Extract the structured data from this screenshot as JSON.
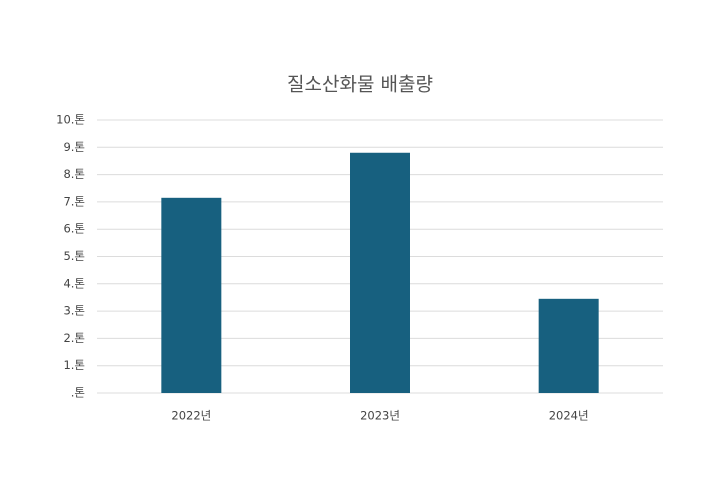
{
  "chart_data": {
    "type": "bar",
    "title": "질소산화물 배출량",
    "categories": [
      "2022년",
      "2023년",
      "2024년"
    ],
    "values": [
      7.15,
      8.8,
      3.45
    ],
    "color": "#17607f",
    "ylim": [
      0,
      10
    ],
    "yticks": [
      {
        "value": 0,
        "label": ".톤"
      },
      {
        "value": 1,
        "label": "1.톤"
      },
      {
        "value": 2,
        "label": "2.톤"
      },
      {
        "value": 3,
        "label": "3.톤"
      },
      {
        "value": 4,
        "label": "4.톤"
      },
      {
        "value": 5,
        "label": "5.톤"
      },
      {
        "value": 6,
        "label": "6.톤"
      },
      {
        "value": 7,
        "label": "7.톤"
      },
      {
        "value": 8,
        "label": "8.톤"
      },
      {
        "value": 9,
        "label": "9.톤"
      },
      {
        "value": 10,
        "label": "10.톤"
      }
    ],
    "grid": true
  }
}
